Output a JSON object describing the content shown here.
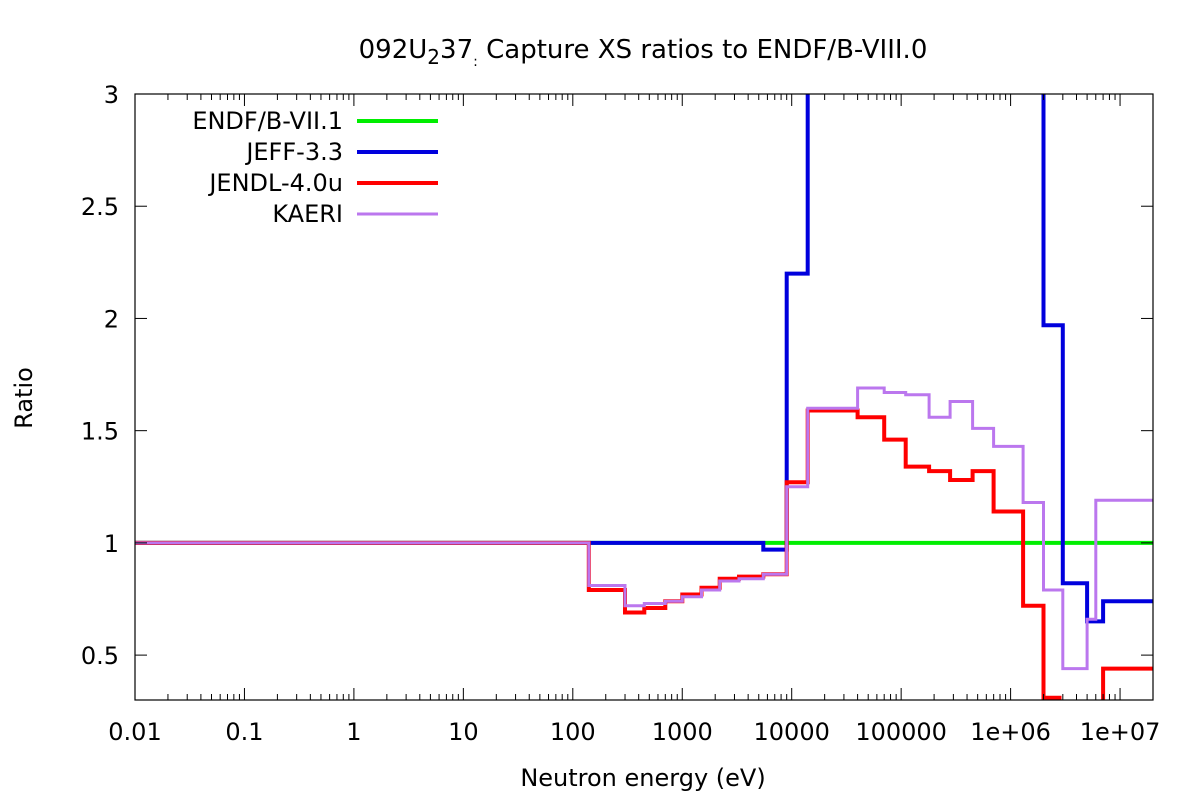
{
  "chart_data": {
    "type": "line",
    "title": {
      "main": "092U",
      "sub": "2",
      "rest": "37",
      "sep": ":",
      "tail": " Capture XS ratios to ENDF/B-VIII.0"
    },
    "xlabel": "Neutron energy (eV)",
    "ylabel": "Ratio",
    "xscale": "log",
    "xlim": [
      0.01,
      20000000
    ],
    "ylim": [
      0.3,
      3
    ],
    "xticks": [
      {
        "value": 0.01,
        "label": "0.01"
      },
      {
        "value": 0.1,
        "label": "0.1"
      },
      {
        "value": 1,
        "label": "1"
      },
      {
        "value": 10,
        "label": "10"
      },
      {
        "value": 100,
        "label": "100"
      },
      {
        "value": 1000,
        "label": "1000"
      },
      {
        "value": 10000,
        "label": "10000"
      },
      {
        "value": 100000,
        "label": "100000"
      },
      {
        "value": 1000000,
        "label": "1e+06"
      },
      {
        "value": 10000000,
        "label": "1e+07"
      }
    ],
    "yticks": [
      {
        "value": 0.5,
        "label": "0.5"
      },
      {
        "value": 1,
        "label": "1"
      },
      {
        "value": 1.5,
        "label": "1.5"
      },
      {
        "value": 2,
        "label": "2"
      },
      {
        "value": 2.5,
        "label": "2.5"
      },
      {
        "value": 3,
        "label": "3"
      }
    ],
    "grid": false,
    "legend_position": "top-left",
    "series": [
      {
        "name": "ENDF/B-VII.1",
        "color": "#00ee00",
        "step": true,
        "x": [
          0.01,
          20000000
        ],
        "y": [
          1.0,
          1.0
        ]
      },
      {
        "name": "JEFF-3.3",
        "color": "#0000dd",
        "step": true,
        "x": [
          0.01,
          100,
          3000,
          5500,
          9000,
          14000,
          2000000,
          3000000,
          5000000,
          7000000,
          20000000
        ],
        "y": [
          1.0,
          1.0,
          1.0,
          0.97,
          2.2,
          3.5,
          1.97,
          0.82,
          0.65,
          0.74,
          0.74
        ]
      },
      {
        "name": "JENDL-4.0u",
        "color": "#ff0000",
        "step": true,
        "x": [
          0.01,
          140,
          300,
          450,
          700,
          1000,
          1500,
          2200,
          3300,
          5500,
          9000,
          14000,
          25000,
          40000,
          70000,
          110000,
          180000,
          280000,
          450000,
          700000,
          1300000,
          2000000,
          2800000,
          4000000,
          6000000,
          7000000,
          20000000
        ],
        "y": [
          1.0,
          0.79,
          0.69,
          0.71,
          0.74,
          0.77,
          0.8,
          0.84,
          0.85,
          0.86,
          1.27,
          1.59,
          1.59,
          1.56,
          1.46,
          1.34,
          1.32,
          1.28,
          1.32,
          1.14,
          0.72,
          0.31,
          0.28,
          0.25,
          0.2,
          0.44,
          0.44
        ]
      },
      {
        "name": "KAERI",
        "color": "#bb77ee",
        "step": true,
        "x": [
          0.01,
          140,
          300,
          450,
          700,
          1000,
          1500,
          2200,
          3300,
          5500,
          9000,
          14000,
          25000,
          40000,
          70000,
          110000,
          180000,
          280000,
          450000,
          700000,
          1300000,
          2000000,
          3000000,
          5000000,
          6000000,
          20000000
        ],
        "y": [
          1.0,
          0.81,
          0.72,
          0.73,
          0.74,
          0.76,
          0.79,
          0.83,
          0.84,
          0.86,
          1.25,
          1.6,
          1.6,
          1.69,
          1.67,
          1.66,
          1.56,
          1.63,
          1.51,
          1.43,
          1.18,
          0.79,
          0.44,
          0.66,
          1.19,
          1.19
        ]
      }
    ]
  }
}
